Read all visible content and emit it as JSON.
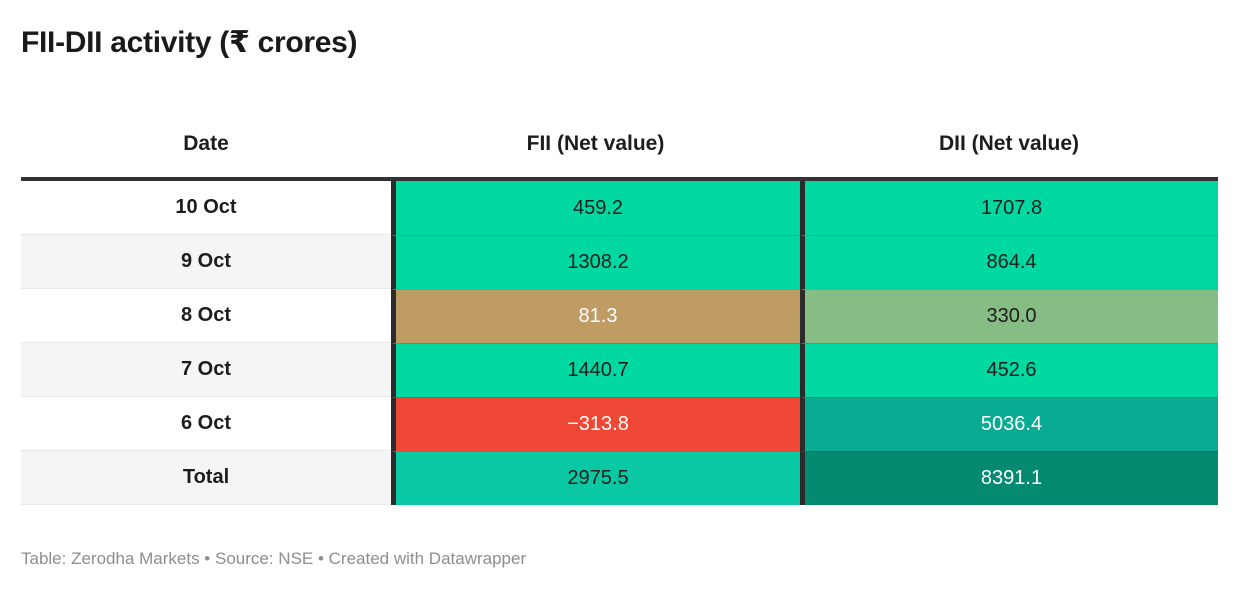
{
  "title": "FII-DII activity (₹ crores)",
  "footer": "Table: Zerodha Markets • Source: NSE • Created with Datawrapper",
  "colors": {
    "positive_green": "#00d8a2",
    "muted_green": "#85bd84",
    "total_green": "#09c8a3",
    "tan_low_positive": "#bf9c64",
    "negative_red": "#ee4735",
    "teal_high": "#09ab93",
    "teal_dark_total": "#038a70",
    "zebra_gray": "#f5f5f5",
    "row_white": "#ffffff",
    "dark_border": "#2b2b2b",
    "text_dark": "#1d1d1d",
    "text_light": "#ffffff"
  },
  "chart_data": {
    "type": "table",
    "title": "FII-DII activity (₹ crores)",
    "columns": [
      "Date",
      "FII (Net value)",
      "DII (Net value)"
    ],
    "categories": [
      "10 Oct",
      "9 Oct",
      "8 Oct",
      "7 Oct",
      "6 Oct",
      "Total"
    ],
    "series": [
      {
        "name": "FII (Net value)",
        "values": [
          459.2,
          1308.2,
          81.3,
          1440.7,
          -313.8,
          2975.5
        ]
      },
      {
        "name": "DII (Net value)",
        "values": [
          1707.8,
          864.4,
          330.0,
          452.6,
          5036.4,
          8391.1
        ]
      }
    ],
    "layout_hints": "value cells heatmap-colored: bright green = strong positive, tan/muted = low positive, red = negative, darker teal = larger totals; date column zebra-striped"
  },
  "table": {
    "headers": [
      "Date",
      "FII (Net value)",
      "DII (Net value)"
    ],
    "rows": [
      {
        "date": "10 Oct",
        "row_bg": "#ffffff",
        "fii": {
          "v": "459.2",
          "bg": "#00d8a2",
          "fg": "#1d1d1d"
        },
        "dii": {
          "v": "1707.8",
          "bg": "#00d8a2",
          "fg": "#1d1d1d"
        }
      },
      {
        "date": "9 Oct",
        "row_bg": "#f5f5f5",
        "fii": {
          "v": "1308.2",
          "bg": "#00d8a2",
          "fg": "#1d1d1d"
        },
        "dii": {
          "v": "864.4",
          "bg": "#00d8a2",
          "fg": "#1d1d1d"
        }
      },
      {
        "date": "8 Oct",
        "row_bg": "#ffffff",
        "fii": {
          "v": "81.3",
          "bg": "#bf9c64",
          "fg": "#ffffff"
        },
        "dii": {
          "v": "330.0",
          "bg": "#85bd84",
          "fg": "#1d1d1d"
        }
      },
      {
        "date": "7 Oct",
        "row_bg": "#f5f5f5",
        "fii": {
          "v": "1440.7",
          "bg": "#00d8a2",
          "fg": "#1d1d1d"
        },
        "dii": {
          "v": "452.6",
          "bg": "#00d8a2",
          "fg": "#1d1d1d"
        }
      },
      {
        "date": "6 Oct",
        "row_bg": "#ffffff",
        "fii": {
          "v": "−313.8",
          "bg": "#ee4735",
          "fg": "#ffffff"
        },
        "dii": {
          "v": "5036.4",
          "bg": "#09ab93",
          "fg": "#ffffff"
        }
      },
      {
        "date": "Total",
        "row_bg": "#f5f5f5",
        "fii": {
          "v": "2975.5",
          "bg": "#09c8a3",
          "fg": "#1d1d1d"
        },
        "dii": {
          "v": "8391.1",
          "bg": "#038a70",
          "fg": "#ffffff"
        }
      }
    ]
  }
}
